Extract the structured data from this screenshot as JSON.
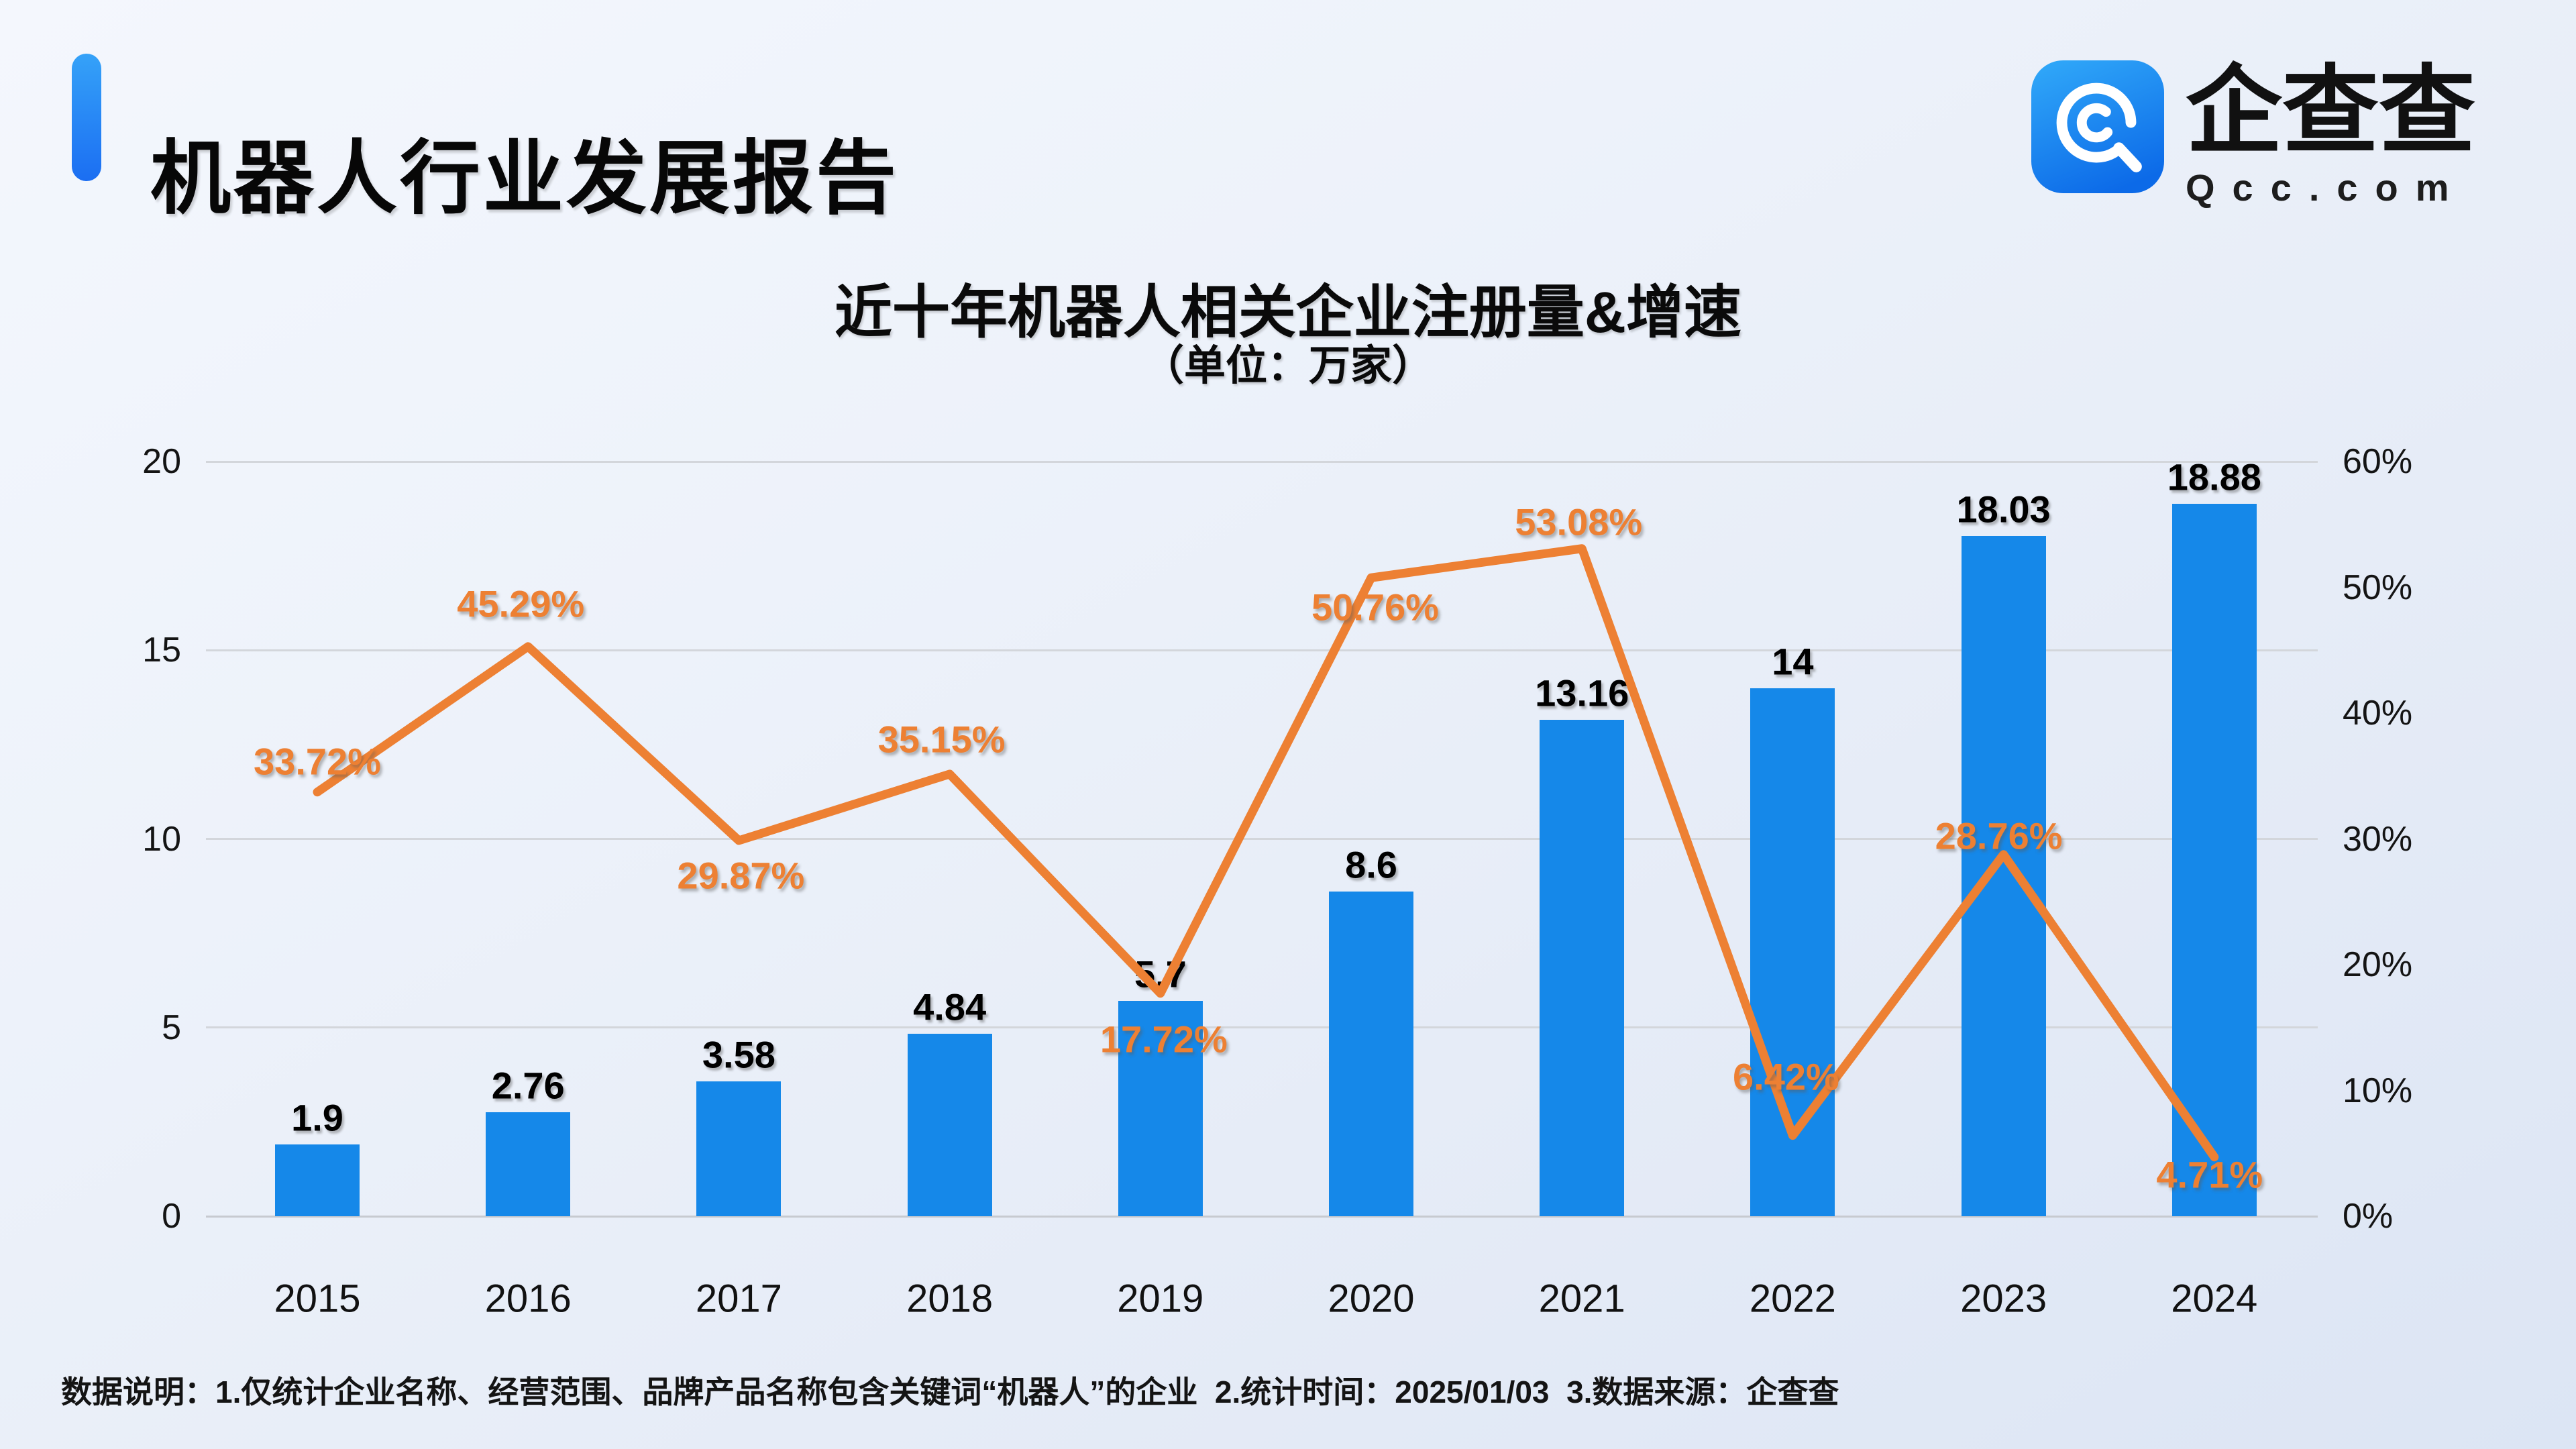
{
  "header": {
    "title": "机器人行业发展报告"
  },
  "logo": {
    "name": "企查查",
    "domain": "Qcc.com"
  },
  "chart_data": {
    "type": "bar+line",
    "title": "近十年机器人相关企业注册量&增速",
    "subtitle": "（单位：万家）",
    "categories": [
      "2015",
      "2016",
      "2017",
      "2018",
      "2019",
      "2020",
      "2021",
      "2022",
      "2023",
      "2024"
    ],
    "series": [
      {
        "name": "注册量",
        "type": "bar",
        "axis": "left",
        "unit": "万家",
        "values": [
          1.9,
          2.76,
          3.58,
          4.84,
          5.7,
          8.6,
          13.16,
          14,
          18.03,
          18.88
        ],
        "labels": [
          "1.9",
          "2.76",
          "3.58",
          "4.84",
          "5.7",
          "8.6",
          "13.16",
          "14",
          "18.03",
          "18.88"
        ],
        "color": "#1588e9"
      },
      {
        "name": "增速",
        "type": "line",
        "axis": "right",
        "unit": "%",
        "values": [
          33.72,
          45.29,
          29.87,
          35.15,
          17.72,
          50.76,
          53.08,
          6.42,
          28.76,
          4.71
        ],
        "labels": [
          "33.72%",
          "45.29%",
          "29.87%",
          "35.15%",
          "17.72%",
          "50.76%",
          "53.08%",
          "6.42%",
          "28.76%",
          "4.71%"
        ],
        "color": "#ed8033"
      }
    ],
    "left_axis": {
      "range": [
        0,
        20
      ],
      "ticks": [
        0,
        5,
        10,
        15,
        20
      ],
      "tick_labels": [
        "0",
        "5",
        "10",
        "15",
        "20"
      ]
    },
    "right_axis": {
      "range": [
        0,
        60
      ],
      "ticks": [
        0,
        10,
        20,
        30,
        40,
        50,
        60
      ],
      "tick_labels": [
        "0%",
        "10%",
        "20%",
        "30%",
        "40%",
        "50%",
        "60%"
      ]
    },
    "grid": true,
    "legend": false
  },
  "footer": {
    "note": "数据说明：1.仅统计企业名称、经营范围、品牌产品名称包含关键词“机器人”的企业  2.统计时间：2025/01/03  3.数据来源：企查查"
  },
  "colors": {
    "bar": "#1588e9",
    "line": "#ed8033",
    "accent_blue": "#1b6ef2",
    "background": "#e9eef8"
  }
}
